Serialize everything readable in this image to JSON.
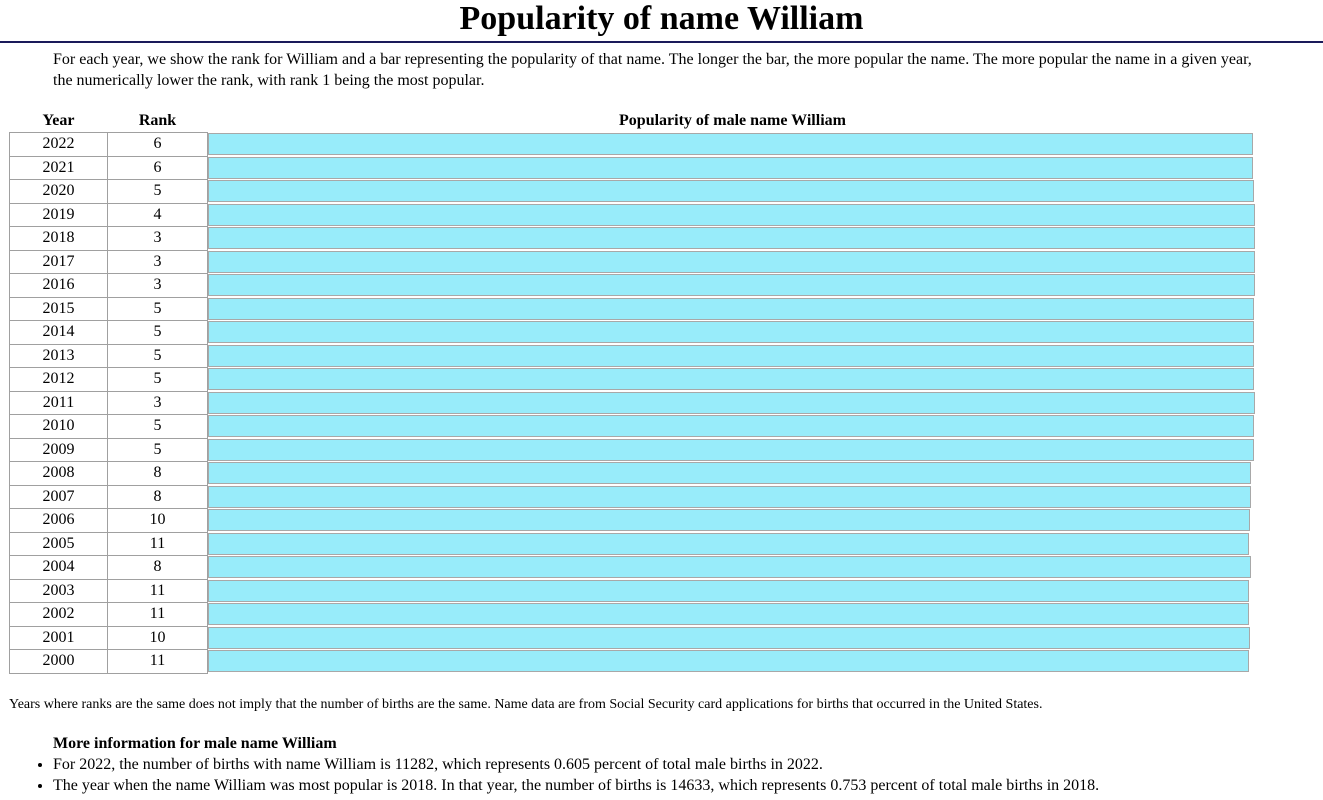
{
  "page": {
    "title": "Popularity of name William",
    "intro": "For each year, we show the rank for William and a bar representing the popularity of that name. The longer the bar, the more popular the name. The more popular the name in a given year, the numerically lower the rank, with rank 1 being the most popular.",
    "note": "Years where ranks are the same does not imply that the number of births are the same. Name data are from Social Security card applications for births that occurred in the United States."
  },
  "table": {
    "headers": {
      "year": "Year",
      "rank": "Rank",
      "bar": "Popularity of male name William"
    },
    "bar_color": "#98ecfa",
    "rows": [
      {
        "year": "2022",
        "rank": "6"
      },
      {
        "year": "2021",
        "rank": "6"
      },
      {
        "year": "2020",
        "rank": "5"
      },
      {
        "year": "2019",
        "rank": "4"
      },
      {
        "year": "2018",
        "rank": "3"
      },
      {
        "year": "2017",
        "rank": "3"
      },
      {
        "year": "2016",
        "rank": "3"
      },
      {
        "year": "2015",
        "rank": "5"
      },
      {
        "year": "2014",
        "rank": "5"
      },
      {
        "year": "2013",
        "rank": "5"
      },
      {
        "year": "2012",
        "rank": "5"
      },
      {
        "year": "2011",
        "rank": "3"
      },
      {
        "year": "2010",
        "rank": "5"
      },
      {
        "year": "2009",
        "rank": "5"
      },
      {
        "year": "2008",
        "rank": "8"
      },
      {
        "year": "2007",
        "rank": "8"
      },
      {
        "year": "2006",
        "rank": "10"
      },
      {
        "year": "2005",
        "rank": "11"
      },
      {
        "year": "2004",
        "rank": "8"
      },
      {
        "year": "2003",
        "rank": "11"
      },
      {
        "year": "2002",
        "rank": "11"
      },
      {
        "year": "2001",
        "rank": "10"
      },
      {
        "year": "2000",
        "rank": "11"
      }
    ]
  },
  "more_info": {
    "title": "More information for male name William",
    "items": [
      "For 2022, the number of births with name William is 11282, which represents 0.605 percent of total male births in 2022.",
      "The year when the name William was most popular is 2018. In that year, the number of births is 14633, which represents 0.753 percent of total male births in 2018."
    ]
  }
}
